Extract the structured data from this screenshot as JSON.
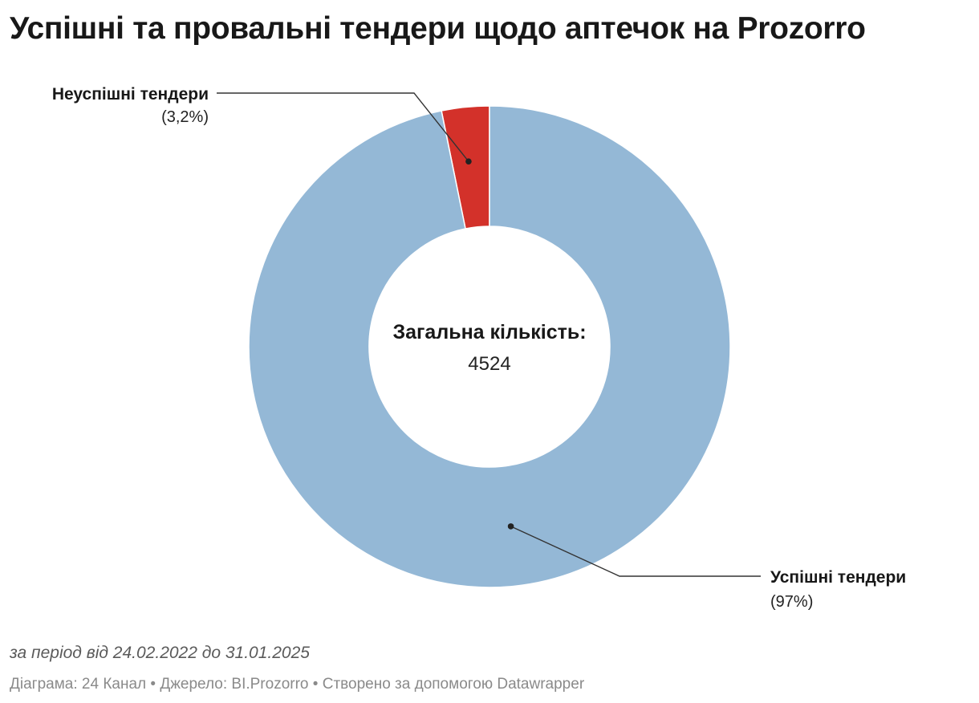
{
  "title": "Успішні та провальні тендери щодо аптечок на Prozorro",
  "notes": "за період від 24.02.2022 до 31.01.2025",
  "footer": {
    "chart_by_label": "Діаграма: 24 Канал",
    "separator": "•",
    "source_label": "Джерело: BI.Prozorro",
    "credit_label": "Створено за допомогою Datawrapper"
  },
  "chart_data": {
    "type": "pie",
    "variant": "donut",
    "title": "Успішні та провальні тендери щодо аптечок на Prozorro",
    "center_label": "Загальна кількість:",
    "center_value": "4524",
    "slices": [
      {
        "label": "Неуспішні тендери",
        "value": 3.2,
        "value_label": "(3,2%)",
        "color": "#d3312a"
      },
      {
        "label": "Успішні тендери",
        "value": 96.8,
        "value_label": "(97%)",
        "color": "#94b8d6"
      }
    ],
    "legend": "none",
    "label_placement": "outside-with-leader-lines"
  }
}
